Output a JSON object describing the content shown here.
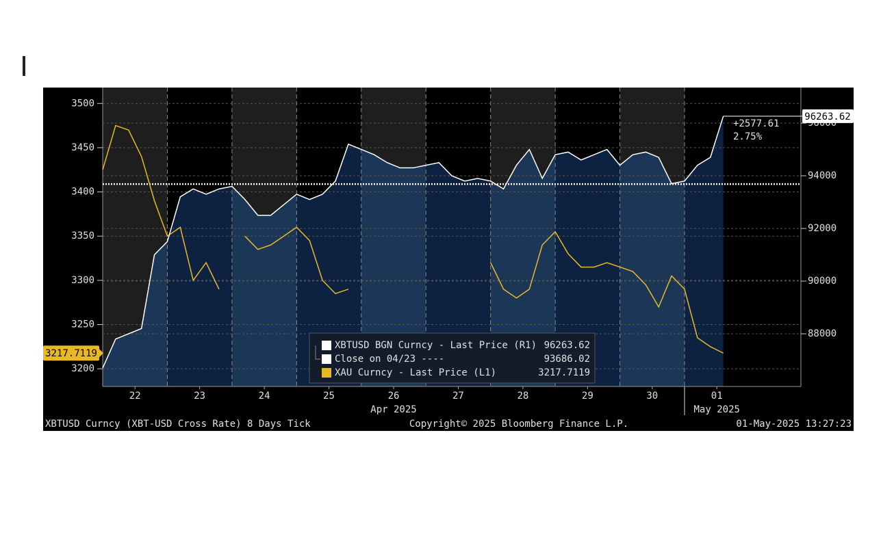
{
  "chart_data": {
    "type": "line",
    "x": [
      0,
      0.2,
      0.4,
      0.6,
      0.8,
      1,
      1.2,
      1.4,
      1.6,
      1.8,
      2,
      2.2,
      2.4,
      2.6,
      2.8,
      3,
      3.2,
      3.4,
      3.6,
      3.8,
      4,
      4.2,
      4.4,
      4.6,
      4.8,
      5,
      5.2,
      5.4,
      5.6,
      5.8,
      6,
      6.2,
      6.4,
      6.6,
      6.8,
      7,
      7.2,
      7.4,
      7.6,
      7.8,
      8,
      8.2,
      8.4,
      8.6,
      8.8,
      9,
      9.2,
      9.4,
      9.6
    ],
    "xlim": [
      0,
      10.8
    ],
    "xticks": [
      {
        "value": 0.5,
        "label": "22"
      },
      {
        "value": 1.5,
        "label": "23"
      },
      {
        "value": 2.5,
        "label": "24"
      },
      {
        "value": 3.5,
        "label": "25"
      },
      {
        "value": 4.5,
        "label": "26"
      },
      {
        "value": 5.5,
        "label": "27"
      },
      {
        "value": 6.5,
        "label": "28"
      },
      {
        "value": 7.5,
        "label": "29"
      },
      {
        "value": 8.5,
        "label": "30"
      },
      {
        "value": 9.5,
        "label": "01"
      }
    ],
    "months": [
      "Apr 2025",
      "May 2025"
    ],
    "ylim": [
      3180,
      3518
    ],
    "yticks": [
      3200,
      3250,
      3300,
      3350,
      3400,
      3450,
      3500
    ],
    "y2lim": [
      86000,
      97350
    ],
    "y2ticks": [
      88000,
      90000,
      92000,
      94000,
      96000
    ],
    "grid": true,
    "series": [
      {
        "name": "XBTUSD BGN Curncy - Last Price (R1)",
        "color": "#ffffff",
        "axis": "y2",
        "values": [
          86700,
          87800,
          88000,
          88200,
          91000,
          91500,
          93200,
          93500,
          93300,
          93500,
          93600,
          93100,
          92500,
          92500,
          92900,
          93300,
          93100,
          93300,
          93800,
          95200,
          95000,
          94800,
          94500,
          94300,
          94300,
          94400,
          94500,
          94000,
          93800,
          93900,
          93800,
          93500,
          94400,
          95000,
          93900,
          94800,
          94900,
          94600,
          94800,
          95000,
          94400,
          94800,
          94900,
          94700,
          93700,
          93800,
          94400,
          94700,
          96263.62
        ]
      },
      {
        "name": "XAU Curncy - Last Price (L1)",
        "color": "#e8b923",
        "values": [
          3425,
          3475,
          3470,
          3440,
          3390,
          3350,
          3360,
          3300,
          3320,
          3290,
          null,
          3350,
          3335,
          3340,
          3350,
          3360,
          3345,
          3300,
          3285,
          3290,
          null,
          null,
          null,
          null,
          null,
          null,
          null,
          null,
          null,
          null,
          3320,
          3290,
          3280,
          3290,
          3340,
          3355,
          3330,
          3315,
          3315,
          3320,
          3315,
          3310,
          3295,
          3270,
          3305,
          3290,
          3235,
          3225,
          3217.7119
        ]
      }
    ],
    "close": {
      "name": "Close on 04/23 ----",
      "value": 93686.02
    },
    "change": "+2577.61",
    "change_pct": "2.75%",
    "footer_left": "XBTUSD Curncy (XBT-USD Cross Rate) 8 Days  Tick",
    "footer_center": "Copyright© 2025 Bloomberg Finance L.P.",
    "footer_right": "01-May-2025 13:27:23"
  }
}
